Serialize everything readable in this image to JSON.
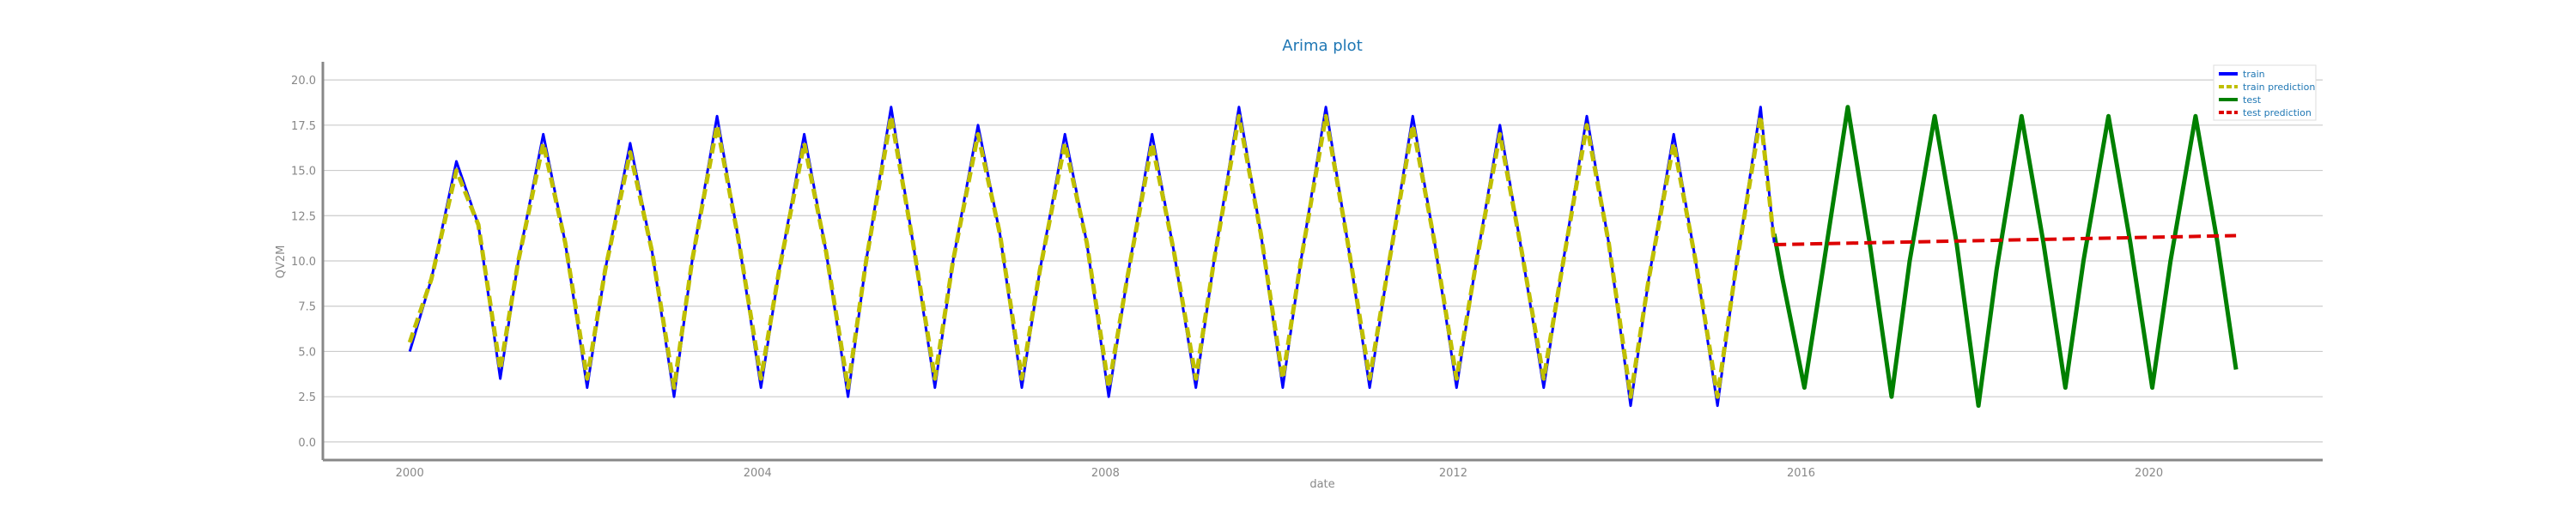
{
  "chart_data": {
    "type": "line",
    "title": "Arima plot",
    "xlabel": "date",
    "ylabel": "QV2M",
    "x_range": [
      "1999-01-01",
      "2021-12-31"
    ],
    "ylim": [
      -1.0,
      21.0
    ],
    "yticks": [
      "0.0",
      "2.5",
      "5.0",
      "7.5",
      "10.0",
      "12.5",
      "15.0",
      "17.5",
      "20.0"
    ],
    "xticks": [
      "2000",
      "2004",
      "2008",
      "2012",
      "2016",
      "2020"
    ],
    "grid": "horizontal",
    "legend_position": "top-right",
    "series": [
      {
        "name": "train",
        "color": "#0000ff",
        "style": "solid",
        "x": [
          "2000-01-01",
          "2000-04-01",
          "2000-07-15",
          "2000-10-15",
          "2001-01-15",
          "2001-04-01",
          "2001-07-15",
          "2001-10-15",
          "2002-01-15",
          "2002-04-01",
          "2002-07-15",
          "2002-10-15",
          "2003-01-15",
          "2003-04-01",
          "2003-07-15",
          "2003-10-15",
          "2004-01-15",
          "2004-04-01",
          "2004-07-15",
          "2004-10-15",
          "2005-01-15",
          "2005-04-01",
          "2005-07-15",
          "2005-10-15",
          "2006-01-15",
          "2006-04-01",
          "2006-07-15",
          "2006-10-15",
          "2007-01-15",
          "2007-04-01",
          "2007-07-15",
          "2007-10-15",
          "2008-01-15",
          "2008-04-01",
          "2008-07-15",
          "2008-10-15",
          "2009-01-15",
          "2009-04-01",
          "2009-07-15",
          "2009-10-15",
          "2010-01-15",
          "2010-04-01",
          "2010-07-15",
          "2010-10-15",
          "2011-01-15",
          "2011-04-01",
          "2011-07-15",
          "2011-10-15",
          "2012-01-15",
          "2012-04-01",
          "2012-07-15",
          "2012-10-15",
          "2013-01-15",
          "2013-04-01",
          "2013-07-15",
          "2013-10-15",
          "2014-01-15",
          "2014-04-01",
          "2014-07-15",
          "2014-10-15",
          "2015-01-15",
          "2015-04-01",
          "2015-07-15",
          "2015-09-10"
        ],
        "y": [
          5.0,
          9.0,
          15.5,
          12.0,
          3.5,
          10.0,
          17.0,
          11.0,
          3.0,
          9.5,
          16.5,
          10.5,
          2.5,
          10.0,
          18.0,
          11.0,
          3.0,
          9.5,
          17.0,
          10.5,
          2.5,
          10.0,
          18.5,
          11.0,
          3.0,
          10.0,
          17.5,
          11.5,
          3.0,
          9.5,
          17.0,
          11.0,
          2.5,
          9.0,
          17.0,
          10.5,
          3.0,
          10.0,
          18.5,
          11.5,
          3.0,
          10.0,
          18.5,
          11.0,
          3.0,
          9.5,
          18.0,
          11.0,
          3.0,
          9.5,
          17.5,
          10.5,
          3.0,
          9.5,
          18.0,
          11.0,
          2.0,
          9.0,
          17.0,
          10.0,
          2.0,
          9.5,
          18.5,
          11.0
        ]
      },
      {
        "name": "train prediction",
        "color": "#bfbf00",
        "style": "dashed",
        "x": [
          "2000-01-01",
          "2000-04-01",
          "2000-07-15",
          "2000-10-15",
          "2001-01-15",
          "2001-04-01",
          "2001-07-15",
          "2001-10-15",
          "2002-01-15",
          "2002-04-01",
          "2002-07-15",
          "2002-10-15",
          "2003-01-15",
          "2003-04-01",
          "2003-07-15",
          "2003-10-15",
          "2004-01-15",
          "2004-04-01",
          "2004-07-15",
          "2004-10-15",
          "2005-01-15",
          "2005-04-01",
          "2005-07-15",
          "2005-10-15",
          "2006-01-15",
          "2006-04-01",
          "2006-07-15",
          "2006-10-15",
          "2007-01-15",
          "2007-04-01",
          "2007-07-15",
          "2007-10-15",
          "2008-01-15",
          "2008-04-01",
          "2008-07-15",
          "2008-10-15",
          "2009-01-15",
          "2009-04-01",
          "2009-07-15",
          "2009-10-15",
          "2010-01-15",
          "2010-04-01",
          "2010-07-15",
          "2010-10-15",
          "2011-01-15",
          "2011-04-01",
          "2011-07-15",
          "2011-10-15",
          "2012-01-15",
          "2012-04-01",
          "2012-07-15",
          "2012-10-15",
          "2013-01-15",
          "2013-04-01",
          "2013-07-15",
          "2013-10-15",
          "2014-01-15",
          "2014-04-01",
          "2014-07-15",
          "2014-10-15",
          "2015-01-15",
          "2015-04-01",
          "2015-07-15",
          "2015-09-10"
        ],
        "y": [
          5.5,
          9.0,
          15.0,
          12.0,
          4.0,
          10.0,
          16.5,
          11.0,
          3.5,
          9.5,
          16.0,
          10.5,
          3.0,
          10.0,
          17.5,
          11.0,
          3.5,
          9.5,
          16.5,
          10.5,
          3.0,
          10.0,
          18.0,
          11.0,
          3.5,
          10.0,
          17.0,
          11.5,
          3.5,
          9.5,
          16.5,
          11.0,
          3.0,
          9.0,
          16.5,
          10.5,
          3.5,
          10.0,
          18.0,
          11.5,
          3.5,
          10.0,
          18.0,
          11.0,
          3.5,
          9.5,
          17.5,
          11.0,
          3.5,
          9.5,
          17.0,
          10.5,
          3.5,
          9.5,
          17.5,
          11.0,
          2.5,
          9.0,
          16.5,
          10.0,
          2.5,
          9.5,
          18.0,
          11.0
        ]
      },
      {
        "name": "test",
        "color": "#008000",
        "style": "solid",
        "x": [
          "2015-09-10",
          "2015-10-15",
          "2016-01-15",
          "2016-04-01",
          "2016-07-15",
          "2016-10-15",
          "2017-01-15",
          "2017-04-01",
          "2017-07-15",
          "2017-10-15",
          "2018-01-15",
          "2018-04-01",
          "2018-07-15",
          "2018-10-15",
          "2019-01-15",
          "2019-04-01",
          "2019-07-15",
          "2019-10-15",
          "2020-01-15",
          "2020-04-01",
          "2020-07-15",
          "2020-10-15",
          "2021-01-01"
        ],
        "y": [
          11.5,
          9.0,
          3.0,
          9.5,
          18.5,
          11.0,
          2.5,
          10.0,
          18.0,
          11.0,
          2.0,
          9.5,
          18.0,
          11.0,
          3.0,
          10.0,
          18.0,
          11.0,
          3.0,
          10.0,
          18.0,
          11.0,
          4.0
        ]
      },
      {
        "name": "test prediction",
        "color": "#dd0000",
        "style": "dashed",
        "x": [
          "2015-09-10",
          "2021-01-01"
        ],
        "y": [
          10.9,
          11.4
        ]
      }
    ]
  }
}
